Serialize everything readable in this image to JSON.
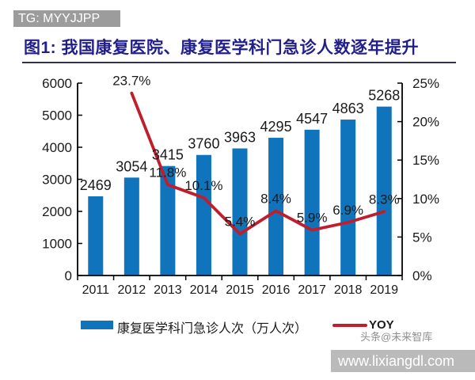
{
  "header": {
    "badge_label": "TG: MYYJJPP"
  },
  "figure": {
    "title": "图1: 我国康复医院、康复医学科门急诊人数逐年提升"
  },
  "chart_data": {
    "type": "combo-bar-line",
    "categories": [
      "2011",
      "2012",
      "2013",
      "2014",
      "2015",
      "2016",
      "2017",
      "2018",
      "2019"
    ],
    "series": [
      {
        "name": "康复医学科门急诊人次（万人次）",
        "type": "bar",
        "axis": "left",
        "values": [
          2469,
          3054,
          3415,
          3760,
          3963,
          4295,
          4547,
          4863,
          5268
        ]
      },
      {
        "name": "YOY",
        "type": "line",
        "axis": "right",
        "unit": "%",
        "values": [
          null,
          23.7,
          11.8,
          10.1,
          5.4,
          8.4,
          5.9,
          6.9,
          8.3
        ]
      }
    ],
    "axes": {
      "left": {
        "min": 0,
        "max": 6000,
        "step": 1000
      },
      "right": {
        "min": 0,
        "max": 25,
        "step": 5,
        "suffix": "%"
      }
    },
    "grid": false,
    "legend_position": "bottom",
    "data_labels": true
  },
  "legend": {
    "bar_label": "康复医学科门急诊人次（万人次）",
    "line_label": "YOY"
  },
  "watermarks": {
    "byline": "头条@未来智库",
    "site": "www.lixiangdl.com"
  },
  "colors": {
    "bar": "#1074BC",
    "line": "#C01E2D",
    "title": "#221E8C",
    "axis": "#000000",
    "label_text": "#1a1a1a",
    "badge_bg": "#9C9C9C",
    "site_bar_bg": "#BABABA",
    "byline_text": "#8F8F8F"
  }
}
